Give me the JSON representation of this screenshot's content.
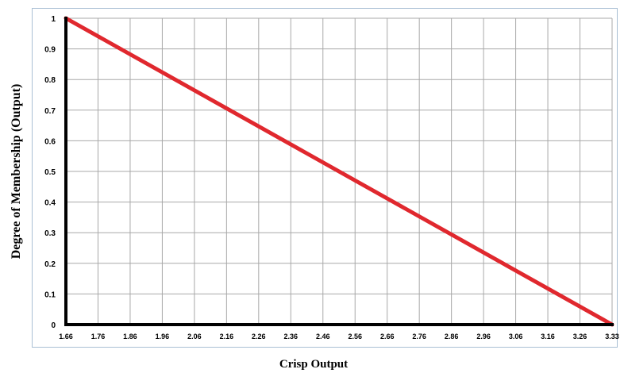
{
  "chart_data": {
    "type": "line",
    "title": "",
    "xlabel": "Crisp Output",
    "ylabel": "Degree of Membership (Output)",
    "x_ticks": [
      "1.66",
      "1.76",
      "1.86",
      "1.96",
      "2.06",
      "2.16",
      "2.26",
      "2.36",
      "2.46",
      "2.56",
      "2.66",
      "2.76",
      "2.86",
      "2.96",
      "3.06",
      "3.16",
      "3.26",
      "3.33"
    ],
    "y_ticks": [
      "0",
      "0.1",
      "0.2",
      "0.3",
      "0.4",
      "0.5",
      "0.6",
      "0.7",
      "0.8",
      "0.9",
      "1"
    ],
    "xlim": [
      1.66,
      3.33
    ],
    "ylim": [
      0,
      1
    ],
    "grid": true,
    "series": [
      {
        "x": [
          1.66,
          3.33
        ],
        "y": [
          1,
          0
        ],
        "color": "#e0282e"
      }
    ],
    "colors": {
      "line": "#e0282e",
      "grid": "#a8a8a8",
      "axis": "#000000",
      "frame": "#a9bfd4"
    }
  }
}
